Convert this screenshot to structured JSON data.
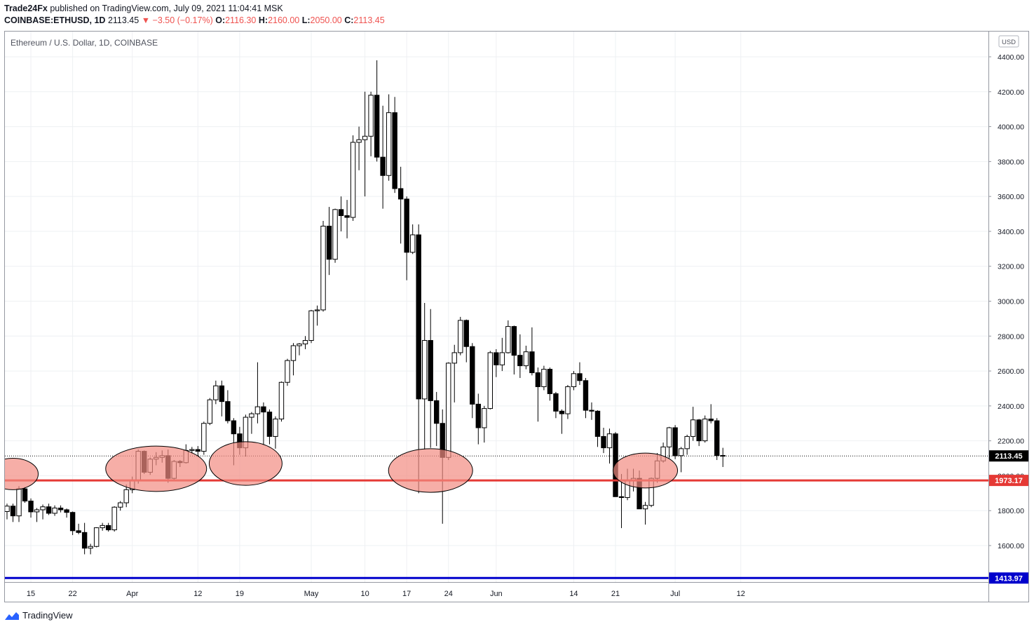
{
  "header": {
    "publisher": "Trade24Fx",
    "published_text": "published on TradingView.com, July 09, 2021 11:04:41 MSK",
    "symbol": "COINBASE:ETHUSD, 1D",
    "last": "2113.45",
    "change": "−3.50 (−0.17%)",
    "o_label": "O:",
    "o_value": "2116.30",
    "h_label": "H:",
    "h_value": "2160.00",
    "l_label": "L:",
    "l_value": "2050.00",
    "c_label": "C:",
    "c_value": "2113.45"
  },
  "footer": {
    "brand": "TradingView"
  },
  "colors": {
    "up_fill": "#ffffff",
    "down_fill": "#000000",
    "support_line": "#e53935",
    "low_line": "#0000cc",
    "highlight": "#f28b82"
  },
  "chart_data": {
    "type": "candlestick",
    "title": "Ethereum / U.S. Dollar, 1D, COINBASE",
    "currency": "USD",
    "ylim": [
      1400,
      4500
    ],
    "y_ticks": [
      1600,
      1800,
      2000,
      2200,
      2400,
      2600,
      2800,
      3000,
      3200,
      3400,
      3600,
      3800,
      4000,
      4200,
      4400
    ],
    "y_tick_labels": [
      "1600.00",
      "1800.00",
      "2000.00",
      "2200.00",
      "2400.00",
      "2600.00",
      "2800.00",
      "3000.00",
      "3200.00",
      "3400.00",
      "3600.00",
      "3800.00",
      "4000.00",
      "4200.00",
      "4400.00"
    ],
    "x_ticks": [
      {
        "label": "15",
        "date": "2021-03-15"
      },
      {
        "label": "22",
        "date": "2021-03-22"
      },
      {
        "label": "Apr",
        "date": "2021-04-01"
      },
      {
        "label": "12",
        "date": "2021-04-12"
      },
      {
        "label": "19",
        "date": "2021-04-19"
      },
      {
        "label": "May",
        "date": "2021-05-01"
      },
      {
        "label": "10",
        "date": "2021-05-10"
      },
      {
        "label": "17",
        "date": "2021-05-17"
      },
      {
        "label": "24",
        "date": "2021-05-24"
      },
      {
        "label": "Jun",
        "date": "2021-06-01"
      },
      {
        "label": "14",
        "date": "2021-06-14"
      },
      {
        "label": "21",
        "date": "2021-06-21"
      },
      {
        "label": "Jul",
        "date": "2021-07-01"
      },
      {
        "label": "12",
        "date": "2021-07-12"
      }
    ],
    "x_range": [
      "2021-03-11",
      "2021-07-12"
    ],
    "candles": [
      {
        "date": "2021-03-11",
        "o": 1795,
        "h": 1840,
        "l": 1750,
        "c": 1826
      },
      {
        "date": "2021-03-12",
        "o": 1826,
        "h": 1840,
        "l": 1735,
        "c": 1770
      },
      {
        "date": "2021-03-13",
        "o": 1770,
        "h": 1940,
        "l": 1735,
        "c": 1925
      },
      {
        "date": "2021-03-14",
        "o": 1925,
        "h": 1935,
        "l": 1845,
        "c": 1855
      },
      {
        "date": "2021-03-15",
        "o": 1855,
        "h": 1870,
        "l": 1760,
        "c": 1793
      },
      {
        "date": "2021-03-16",
        "o": 1793,
        "h": 1815,
        "l": 1735,
        "c": 1805
      },
      {
        "date": "2021-03-17",
        "o": 1805,
        "h": 1835,
        "l": 1750,
        "c": 1822
      },
      {
        "date": "2021-03-18",
        "o": 1822,
        "h": 1840,
        "l": 1775,
        "c": 1785
      },
      {
        "date": "2021-03-19",
        "o": 1785,
        "h": 1830,
        "l": 1770,
        "c": 1815
      },
      {
        "date": "2021-03-20",
        "o": 1815,
        "h": 1830,
        "l": 1790,
        "c": 1805
      },
      {
        "date": "2021-03-21",
        "o": 1805,
        "h": 1812,
        "l": 1760,
        "c": 1790
      },
      {
        "date": "2021-03-22",
        "o": 1790,
        "h": 1795,
        "l": 1660,
        "c": 1685
      },
      {
        "date": "2021-03-23",
        "o": 1685,
        "h": 1725,
        "l": 1665,
        "c": 1675
      },
      {
        "date": "2021-03-24",
        "o": 1675,
        "h": 1730,
        "l": 1550,
        "c": 1585
      },
      {
        "date": "2021-03-25",
        "o": 1585,
        "h": 1610,
        "l": 1550,
        "c": 1595
      },
      {
        "date": "2021-03-26",
        "o": 1595,
        "h": 1705,
        "l": 1590,
        "c": 1702
      },
      {
        "date": "2021-03-27",
        "o": 1702,
        "h": 1730,
        "l": 1685,
        "c": 1715
      },
      {
        "date": "2021-03-28",
        "o": 1715,
        "h": 1730,
        "l": 1680,
        "c": 1690
      },
      {
        "date": "2021-03-29",
        "o": 1690,
        "h": 1825,
        "l": 1680,
        "c": 1820
      },
      {
        "date": "2021-03-30",
        "o": 1820,
        "h": 1855,
        "l": 1800,
        "c": 1845
      },
      {
        "date": "2021-03-31",
        "o": 1845,
        "h": 1950,
        "l": 1820,
        "c": 1920
      },
      {
        "date": "2021-04-01",
        "o": 1920,
        "h": 1995,
        "l": 1900,
        "c": 1975
      },
      {
        "date": "2021-04-02",
        "o": 1975,
        "h": 2150,
        "l": 1955,
        "c": 2140
      },
      {
        "date": "2021-04-03",
        "o": 2140,
        "h": 2145,
        "l": 2010,
        "c": 2020
      },
      {
        "date": "2021-04-04",
        "o": 2020,
        "h": 2105,
        "l": 2005,
        "c": 2095
      },
      {
        "date": "2021-04-05",
        "o": 2095,
        "h": 2135,
        "l": 2060,
        "c": 2105
      },
      {
        "date": "2021-04-06",
        "o": 2105,
        "h": 2145,
        "l": 2075,
        "c": 2115
      },
      {
        "date": "2021-04-07",
        "o": 2115,
        "h": 2150,
        "l": 1960,
        "c": 1985
      },
      {
        "date": "2021-04-08",
        "o": 1985,
        "h": 2090,
        "l": 1975,
        "c": 2082
      },
      {
        "date": "2021-04-09",
        "o": 2082,
        "h": 2090,
        "l": 2050,
        "c": 2075
      },
      {
        "date": "2021-04-10",
        "o": 2075,
        "h": 2180,
        "l": 2070,
        "c": 2145
      },
      {
        "date": "2021-04-11",
        "o": 2145,
        "h": 2165,
        "l": 2125,
        "c": 2150
      },
      {
        "date": "2021-04-12",
        "o": 2150,
        "h": 2170,
        "l": 2110,
        "c": 2140
      },
      {
        "date": "2021-04-13",
        "o": 2140,
        "h": 2310,
        "l": 2120,
        "c": 2300
      },
      {
        "date": "2021-04-14",
        "o": 2300,
        "h": 2445,
        "l": 2290,
        "c": 2435
      },
      {
        "date": "2021-04-15",
        "o": 2435,
        "h": 2545,
        "l": 2410,
        "c": 2515
      },
      {
        "date": "2021-04-16",
        "o": 2515,
        "h": 2545,
        "l": 2340,
        "c": 2425
      },
      {
        "date": "2021-04-17",
        "o": 2425,
        "h": 2490,
        "l": 2300,
        "c": 2315
      },
      {
        "date": "2021-04-18",
        "o": 2315,
        "h": 2330,
        "l": 2060,
        "c": 2240
      },
      {
        "date": "2021-04-19",
        "o": 2240,
        "h": 2280,
        "l": 2120,
        "c": 2160
      },
      {
        "date": "2021-04-20",
        "o": 2160,
        "h": 2350,
        "l": 2110,
        "c": 2335
      },
      {
        "date": "2021-04-21",
        "o": 2335,
        "h": 2365,
        "l": 2240,
        "c": 2355
      },
      {
        "date": "2021-04-22",
        "o": 2355,
        "h": 2650,
        "l": 2300,
        "c": 2395
      },
      {
        "date": "2021-04-23",
        "o": 2395,
        "h": 2420,
        "l": 2180,
        "c": 2365
      },
      {
        "date": "2021-04-24",
        "o": 2365,
        "h": 2380,
        "l": 2180,
        "c": 2225
      },
      {
        "date": "2021-04-25",
        "o": 2225,
        "h": 2340,
        "l": 2155,
        "c": 2325
      },
      {
        "date": "2021-04-26",
        "o": 2325,
        "h": 2540,
        "l": 2310,
        "c": 2535
      },
      {
        "date": "2021-04-27",
        "o": 2535,
        "h": 2670,
        "l": 2515,
        "c": 2660
      },
      {
        "date": "2021-04-28",
        "o": 2660,
        "h": 2760,
        "l": 2575,
        "c": 2745
      },
      {
        "date": "2021-04-29",
        "o": 2745,
        "h": 2760,
        "l": 2690,
        "c": 2755
      },
      {
        "date": "2021-04-30",
        "o": 2755,
        "h": 2800,
        "l": 2725,
        "c": 2775
      },
      {
        "date": "2021-05-01",
        "o": 2775,
        "h": 2950,
        "l": 2760,
        "c": 2945
      },
      {
        "date": "2021-05-02",
        "o": 2945,
        "h": 2975,
        "l": 2860,
        "c": 2950
      },
      {
        "date": "2021-05-03",
        "o": 2950,
        "h": 3460,
        "l": 2940,
        "c": 3430
      },
      {
        "date": "2021-05-04",
        "o": 3430,
        "h": 3540,
        "l": 3150,
        "c": 3240
      },
      {
        "date": "2021-05-05",
        "o": 3240,
        "h": 3530,
        "l": 3220,
        "c": 3525
      },
      {
        "date": "2021-05-06",
        "o": 3525,
        "h": 3600,
        "l": 3400,
        "c": 3490
      },
      {
        "date": "2021-05-07",
        "o": 3490,
        "h": 3580,
        "l": 3360,
        "c": 3480
      },
      {
        "date": "2021-05-08",
        "o": 3480,
        "h": 3950,
        "l": 3460,
        "c": 3910
      },
      {
        "date": "2021-05-09",
        "o": 3910,
        "h": 4000,
        "l": 3750,
        "c": 3925
      },
      {
        "date": "2021-05-10",
        "o": 3925,
        "h": 4200,
        "l": 3600,
        "c": 3945
      },
      {
        "date": "2021-05-11",
        "o": 3945,
        "h": 4200,
        "l": 3830,
        "c": 4180
      },
      {
        "date": "2021-05-12",
        "o": 4180,
        "h": 4380,
        "l": 3800,
        "c": 3825
      },
      {
        "date": "2021-05-13",
        "o": 3825,
        "h": 4120,
        "l": 3530,
        "c": 3720
      },
      {
        "date": "2021-05-14",
        "o": 3720,
        "h": 4185,
        "l": 3690,
        "c": 4080
      },
      {
        "date": "2021-05-15",
        "o": 4080,
        "h": 4170,
        "l": 3620,
        "c": 3645
      },
      {
        "date": "2021-05-16",
        "o": 3645,
        "h": 3770,
        "l": 3330,
        "c": 3585
      },
      {
        "date": "2021-05-17",
        "o": 3585,
        "h": 3600,
        "l": 3120,
        "c": 3280
      },
      {
        "date": "2021-05-18",
        "o": 3280,
        "h": 3440,
        "l": 3270,
        "c": 3380
      },
      {
        "date": "2021-05-19",
        "o": 3380,
        "h": 3440,
        "l": 1900,
        "c": 2440
      },
      {
        "date": "2021-05-20",
        "o": 2440,
        "h": 2990,
        "l": 2150,
        "c": 2775
      },
      {
        "date": "2021-05-21",
        "o": 2775,
        "h": 2955,
        "l": 2160,
        "c": 2430
      },
      {
        "date": "2021-05-22",
        "o": 2430,
        "h": 2480,
        "l": 2170,
        "c": 2300
      },
      {
        "date": "2021-05-23",
        "o": 2300,
        "h": 2380,
        "l": 1725,
        "c": 2105
      },
      {
        "date": "2021-05-24",
        "o": 2105,
        "h": 2650,
        "l": 2090,
        "c": 2645
      },
      {
        "date": "2021-05-25",
        "o": 2645,
        "h": 2750,
        "l": 2420,
        "c": 2705
      },
      {
        "date": "2021-05-26",
        "o": 2705,
        "h": 2910,
        "l": 2690,
        "c": 2890
      },
      {
        "date": "2021-05-27",
        "o": 2890,
        "h": 2895,
        "l": 2650,
        "c": 2740
      },
      {
        "date": "2021-05-28",
        "o": 2740,
        "h": 2760,
        "l": 2330,
        "c": 2410
      },
      {
        "date": "2021-05-29",
        "o": 2410,
        "h": 2470,
        "l": 2180,
        "c": 2275
      },
      {
        "date": "2021-05-30",
        "o": 2275,
        "h": 2400,
        "l": 2190,
        "c": 2385
      },
      {
        "date": "2021-05-31",
        "o": 2385,
        "h": 2715,
        "l": 2380,
        "c": 2705
      },
      {
        "date": "2021-06-01",
        "o": 2705,
        "h": 2725,
        "l": 2565,
        "c": 2635
      },
      {
        "date": "2021-06-02",
        "o": 2635,
        "h": 2790,
        "l": 2600,
        "c": 2705
      },
      {
        "date": "2021-06-03",
        "o": 2705,
        "h": 2890,
        "l": 2700,
        "c": 2855
      },
      {
        "date": "2021-06-04",
        "o": 2855,
        "h": 2860,
        "l": 2580,
        "c": 2690
      },
      {
        "date": "2021-06-05",
        "o": 2690,
        "h": 2810,
        "l": 2560,
        "c": 2630
      },
      {
        "date": "2021-06-06",
        "o": 2630,
        "h": 2745,
        "l": 2610,
        "c": 2710
      },
      {
        "date": "2021-06-07",
        "o": 2710,
        "h": 2850,
        "l": 2575,
        "c": 2590
      },
      {
        "date": "2021-06-08",
        "o": 2590,
        "h": 2620,
        "l": 2310,
        "c": 2510
      },
      {
        "date": "2021-06-09",
        "o": 2510,
        "h": 2630,
        "l": 2490,
        "c": 2610
      },
      {
        "date": "2021-06-10",
        "o": 2610,
        "h": 2620,
        "l": 2430,
        "c": 2470
      },
      {
        "date": "2021-06-11",
        "o": 2470,
        "h": 2480,
        "l": 2330,
        "c": 2370
      },
      {
        "date": "2021-06-12",
        "o": 2370,
        "h": 2380,
        "l": 2240,
        "c": 2355
      },
      {
        "date": "2021-06-13",
        "o": 2355,
        "h": 2520,
        "l": 2325,
        "c": 2510
      },
      {
        "date": "2021-06-14",
        "o": 2510,
        "h": 2600,
        "l": 2490,
        "c": 2585
      },
      {
        "date": "2021-06-15",
        "o": 2585,
        "h": 2650,
        "l": 2520,
        "c": 2545
      },
      {
        "date": "2021-06-16",
        "o": 2545,
        "h": 2560,
        "l": 2330,
        "c": 2375
      },
      {
        "date": "2021-06-17",
        "o": 2375,
        "h": 2420,
        "l": 2320,
        "c": 2370
      },
      {
        "date": "2021-06-18",
        "o": 2370,
        "h": 2375,
        "l": 2165,
        "c": 2225
      },
      {
        "date": "2021-06-19",
        "o": 2225,
        "h": 2275,
        "l": 2130,
        "c": 2160
      },
      {
        "date": "2021-06-20",
        "o": 2160,
        "h": 2270,
        "l": 2070,
        "c": 2240
      },
      {
        "date": "2021-06-21",
        "o": 2240,
        "h": 2250,
        "l": 1880,
        "c": 1880
      },
      {
        "date": "2021-06-22",
        "o": 1880,
        "h": 2010,
        "l": 1700,
        "c": 1875
      },
      {
        "date": "2021-06-23",
        "o": 1875,
        "h": 2040,
        "l": 1860,
        "c": 1970
      },
      {
        "date": "2021-06-24",
        "o": 1970,
        "h": 2040,
        "l": 1910,
        "c": 1985
      },
      {
        "date": "2021-06-25",
        "o": 1985,
        "h": 2030,
        "l": 1810,
        "c": 1810
      },
      {
        "date": "2021-06-26",
        "o": 1810,
        "h": 1850,
        "l": 1720,
        "c": 1830
      },
      {
        "date": "2021-06-27",
        "o": 1830,
        "h": 1990,
        "l": 1820,
        "c": 1985
      },
      {
        "date": "2021-06-28",
        "o": 1985,
        "h": 2130,
        "l": 1960,
        "c": 2085
      },
      {
        "date": "2021-06-29",
        "o": 2085,
        "h": 2190,
        "l": 2075,
        "c": 2165
      },
      {
        "date": "2021-06-30",
        "o": 2165,
        "h": 2280,
        "l": 2100,
        "c": 2275
      },
      {
        "date": "2021-07-01",
        "o": 2275,
        "h": 2290,
        "l": 2095,
        "c": 2115
      },
      {
        "date": "2021-07-02",
        "o": 2115,
        "h": 2165,
        "l": 2020,
        "c": 2155
      },
      {
        "date": "2021-07-03",
        "o": 2155,
        "h": 2235,
        "l": 2120,
        "c": 2225
      },
      {
        "date": "2021-07-04",
        "o": 2225,
        "h": 2395,
        "l": 2200,
        "c": 2320
      },
      {
        "date": "2021-07-05",
        "o": 2320,
        "h": 2325,
        "l": 2170,
        "c": 2200
      },
      {
        "date": "2021-07-06",
        "o": 2200,
        "h": 2345,
        "l": 2190,
        "c": 2325
      },
      {
        "date": "2021-07-07",
        "o": 2325,
        "h": 2410,
        "l": 2300,
        "c": 2315
      },
      {
        "date": "2021-07-08",
        "o": 2315,
        "h": 2330,
        "l": 2090,
        "c": 2116
      },
      {
        "date": "2021-07-09",
        "o": 2116,
        "h": 2160,
        "l": 2050,
        "c": 2113.45
      }
    ],
    "horizontal_lines": [
      {
        "value": 1973.17,
        "label": "1973.17",
        "color": "#e53935"
      },
      {
        "value": 1413.97,
        "label": "1413.97",
        "color": "#0000cc"
      }
    ],
    "last_price": {
      "value": 2113.45,
      "label": "2113.45"
    },
    "highlights": [
      {
        "date": "2021-03-12",
        "price": 2010,
        "span_days": 1.8,
        "span_price": 180
      },
      {
        "date": "2021-04-05",
        "price": 2040,
        "span_days": 3.6,
        "span_price": 260
      },
      {
        "date": "2021-04-20",
        "price": 2070,
        "span_days": 2.6,
        "span_price": 250
      },
      {
        "date": "2021-05-21",
        "price": 2030,
        "span_days": 3.0,
        "span_price": 250
      },
      {
        "date": "2021-06-26",
        "price": 2030,
        "span_days": 2.3,
        "span_price": 200
      }
    ]
  }
}
